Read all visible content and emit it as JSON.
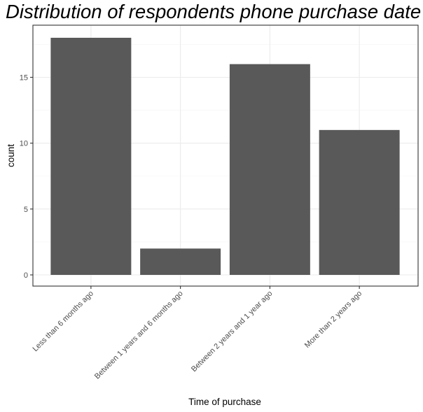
{
  "chart_data": {
    "type": "bar",
    "title": "Distribution of respondents phone purchase date",
    "xlabel": "Time of purchase",
    "ylabel": "count",
    "categories": [
      "Less than 6 months ago",
      "Between 1 years and 6 months ago",
      "Between 2 years and 1 year ago",
      "More than 2 years ago"
    ],
    "values": [
      18,
      2,
      16,
      11
    ],
    "ylim": [
      0,
      18.9
    ],
    "yticks": [
      0,
      5,
      10,
      15
    ],
    "grid": true,
    "legend": "none",
    "colors": {
      "bar": "#595959",
      "grid_major": "#ebebeb",
      "grid_minor": "#f5f5f5",
      "panel_border": "#333333"
    }
  }
}
